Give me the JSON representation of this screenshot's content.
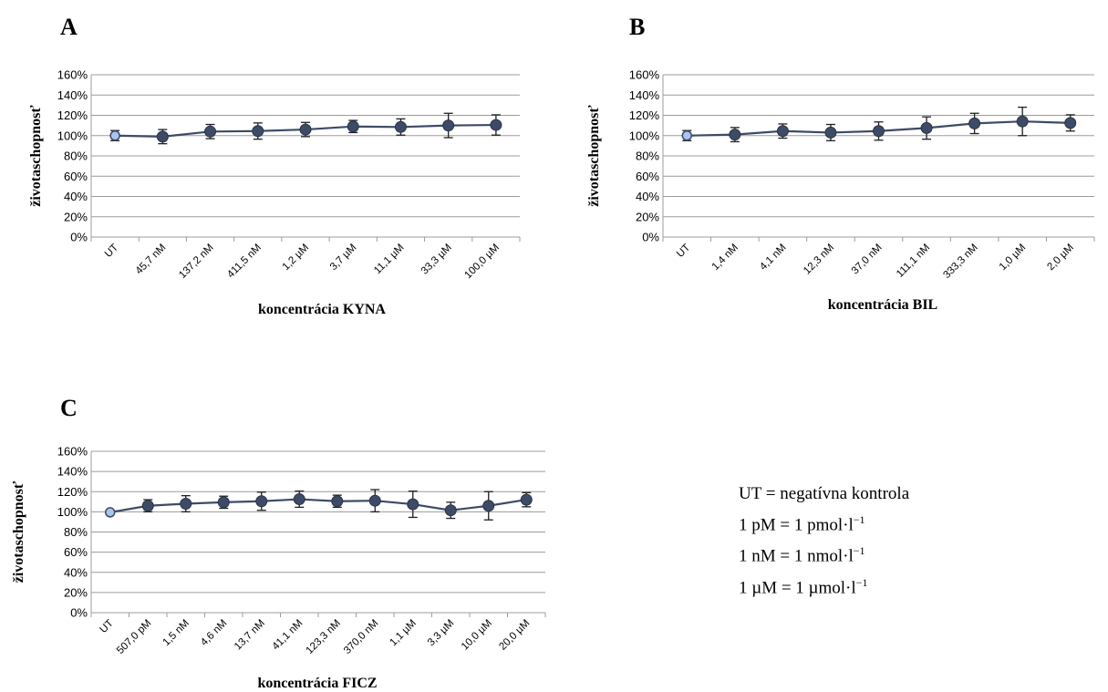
{
  "chart_data": [
    {
      "panel": "A",
      "type": "line",
      "ylabel": "životaschopnosť",
      "xlabel": "koncentrácia KYNA",
      "ylim": [
        0,
        160
      ],
      "yticks": [
        "0%",
        "20%",
        "40%",
        "60%",
        "80%",
        "100%",
        "120%",
        "140%",
        "160%"
      ],
      "grid": true,
      "categories": [
        "UT",
        "45,7 nM",
        "137,2 nM",
        "411,5 nM",
        "1,2 µM",
        "3,7 µM",
        "11,1 µM",
        "33,3 µM",
        "100,0 µM"
      ],
      "values": [
        100,
        99,
        104,
        104.5,
        106,
        109,
        108.5,
        110,
        110.5
      ],
      "errors": [
        5,
        7,
        7,
        8,
        7,
        6,
        8,
        12,
        10
      ]
    },
    {
      "panel": "B",
      "type": "line",
      "ylabel": "životaschopnosť",
      "xlabel": "koncentrácia BIL",
      "ylim": [
        0,
        160
      ],
      "yticks": [
        "0%",
        "20%",
        "40%",
        "60%",
        "80%",
        "100%",
        "120%",
        "140%",
        "160%"
      ],
      "grid": true,
      "categories": [
        "UT",
        "1,4 nM",
        "4,1 nM",
        "12,3 nM",
        "37,0 nM",
        "111,1 nM",
        "333,3 nM",
        "1,0 µM",
        "2,0 µM"
      ],
      "values": [
        100,
        101,
        104.5,
        103,
        104.5,
        107.5,
        112,
        114,
        112.5
      ],
      "errors": [
        5,
        7,
        7,
        8,
        9,
        11,
        10,
        14,
        8
      ]
    },
    {
      "panel": "C",
      "type": "line",
      "ylabel": "životaschopnosť",
      "xlabel": "koncentrácia FICZ",
      "ylim": [
        0,
        160
      ],
      "yticks": [
        "0%",
        "20%",
        "40%",
        "60%",
        "80%",
        "100%",
        "120%",
        "140%",
        "160%"
      ],
      "grid": true,
      "categories": [
        "UT",
        "507,0 pM",
        "1,5 nM",
        "4,6 nM",
        "13,7 nM",
        "41,1 nM",
        "123,3 nM",
        "370,0 nM",
        "1,1 µM",
        "3,3 µM",
        "10,0 µM",
        "20,0 µM"
      ],
      "values": [
        99.5,
        106,
        108,
        109.5,
        110.5,
        112.5,
        110.5,
        111,
        107.5,
        101.5,
        106,
        112
      ],
      "errors": [
        2,
        6,
        8,
        6,
        9,
        8,
        6,
        11,
        13,
        8,
        14,
        7
      ]
    }
  ],
  "legend": {
    "line1": "UT = negatívna kontrola",
    "line2_main": "1 pM = 1 pmol·l",
    "line3_main": "1 nM = 1 nmol·l",
    "line4_main": "1 µM = 1 µmol·l",
    "exponent": "−1"
  }
}
